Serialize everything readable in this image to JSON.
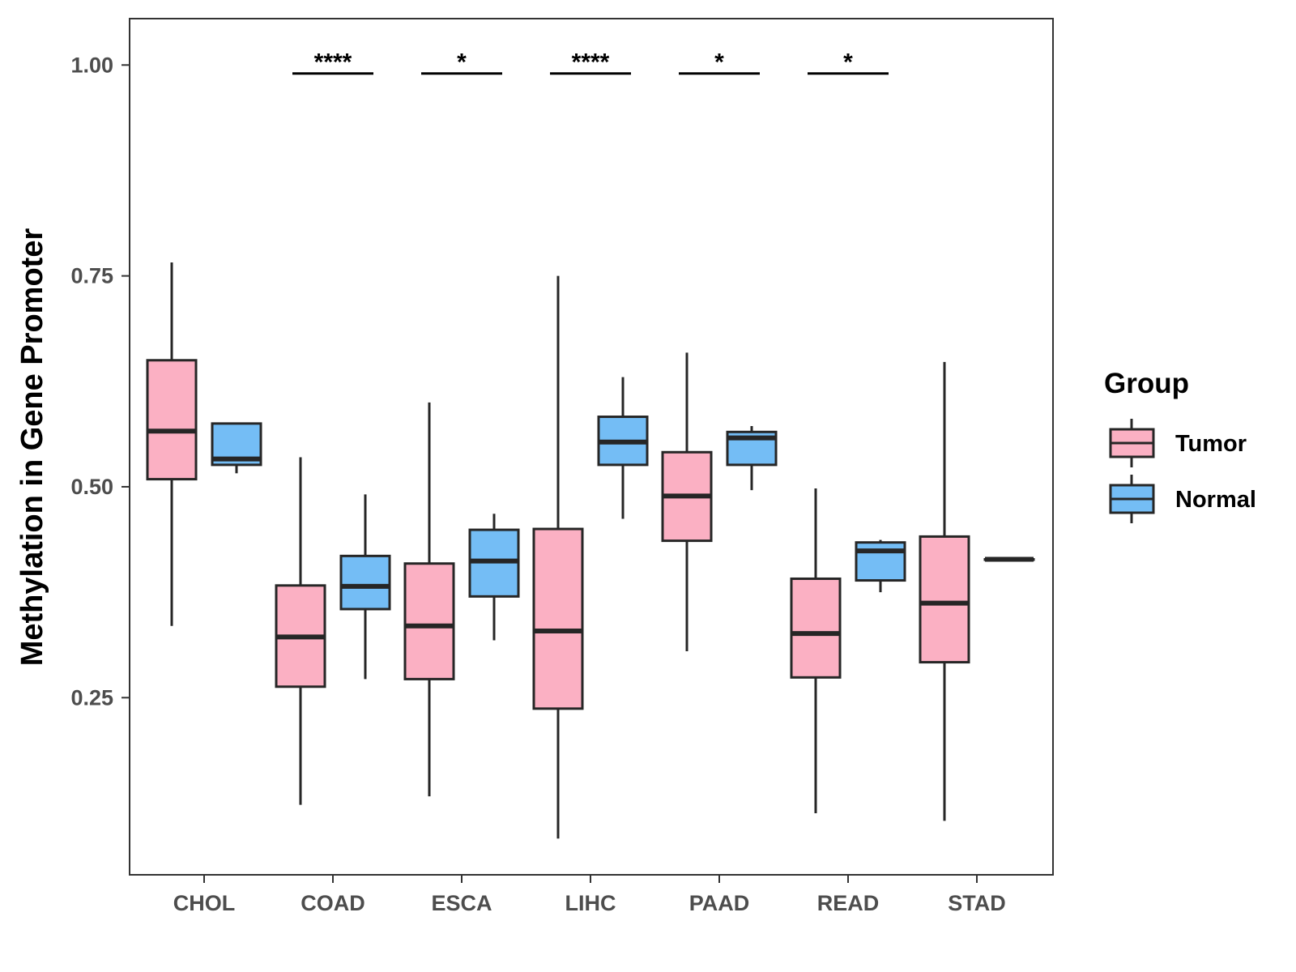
{
  "chart_data": {
    "type": "box",
    "title": "",
    "xlabel": "",
    "ylabel": "Methylation in Gene Promoter",
    "ylim": [
      0.04,
      1.055
    ],
    "yticks": [
      0.25,
      0.5,
      0.75,
      1.0
    ],
    "ytick_labels": [
      "0.25",
      "0.50",
      "0.75",
      "1.00"
    ],
    "categories": [
      "CHOL",
      "COAD",
      "ESCA",
      "LIHC",
      "PAAD",
      "READ",
      "STAD"
    ],
    "legend": {
      "title": "Group",
      "position": "right"
    },
    "series": [
      {
        "name": "Tumor",
        "color": "#fbb0c3",
        "boxes": [
          {
            "min": 0.335,
            "q1": 0.509,
            "median": 0.566,
            "q3": 0.65,
            "max": 0.766
          },
          {
            "min": 0.123,
            "q1": 0.263,
            "median": 0.322,
            "q3": 0.383,
            "max": 0.535
          },
          {
            "min": 0.133,
            "q1": 0.272,
            "median": 0.335,
            "q3": 0.409,
            "max": 0.6
          },
          {
            "min": 0.083,
            "q1": 0.237,
            "median": 0.329,
            "q3": 0.45,
            "max": 0.75
          },
          {
            "min": 0.305,
            "q1": 0.436,
            "median": 0.489,
            "q3": 0.541,
            "max": 0.659
          },
          {
            "min": 0.113,
            "q1": 0.274,
            "median": 0.326,
            "q3": 0.391,
            "max": 0.498
          },
          {
            "min": 0.104,
            "q1": 0.292,
            "median": 0.362,
            "q3": 0.441,
            "max": 0.648
          }
        ]
      },
      {
        "name": "Normal",
        "color": "#74bdf5",
        "boxes": [
          {
            "min": 0.516,
            "q1": 0.526,
            "median": 0.533,
            "q3": 0.575,
            "max": 0.575
          },
          {
            "min": 0.272,
            "q1": 0.355,
            "median": 0.382,
            "q3": 0.418,
            "max": 0.491
          },
          {
            "min": 0.318,
            "q1": 0.37,
            "median": 0.412,
            "q3": 0.449,
            "max": 0.468
          },
          {
            "min": 0.462,
            "q1": 0.526,
            "median": 0.553,
            "q3": 0.583,
            "max": 0.63
          },
          {
            "min": 0.496,
            "q1": 0.526,
            "median": 0.558,
            "q3": 0.565,
            "max": 0.572
          },
          {
            "min": 0.375,
            "q1": 0.389,
            "median": 0.424,
            "q3": 0.434,
            "max": 0.437
          },
          {
            "min": 0.414,
            "q1": 0.414,
            "median": 0.414,
            "q3": 0.414,
            "max": 0.414
          }
        ]
      }
    ],
    "significance": [
      {
        "category": "COAD",
        "label": "****",
        "y": 0.99
      },
      {
        "category": "ESCA",
        "label": "*",
        "y": 0.99
      },
      {
        "category": "LIHC",
        "label": "****",
        "y": 0.99
      },
      {
        "category": "PAAD",
        "label": "*",
        "y": 0.99
      },
      {
        "category": "READ",
        "label": "*",
        "y": 0.99
      }
    ]
  }
}
